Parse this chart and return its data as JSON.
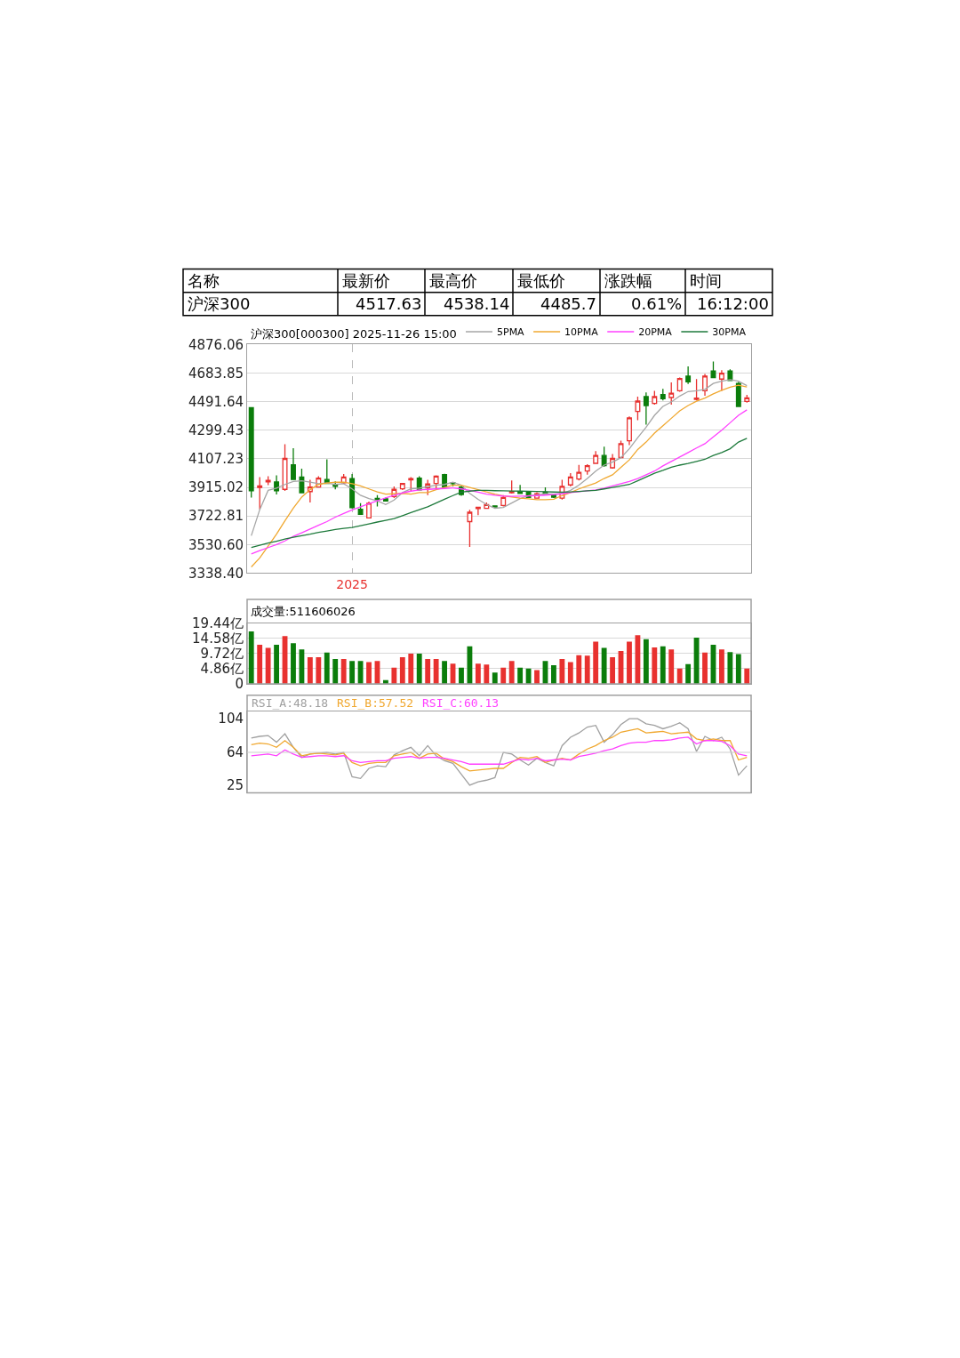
{
  "chart_data": [
    {
      "type": "other",
      "annotations": [
        "名称",
        "最新价",
        "最高价",
        "最低价",
        "涨跌幅",
        "时间",
        "沪深300",
        "4517.63",
        "4538.14",
        "4485.7",
        "0.61%",
        "16:12:00"
      ]
    },
    {
      "type": "candlestick",
      "title": "沪深300[000300] 2025-11-26 15:00",
      "categories": [
        null,
        null,
        null,
        null,
        null,
        null,
        null,
        null,
        null,
        null,
        null,
        null,
        "2025",
        null,
        null,
        null,
        null,
        null,
        null,
        null,
        null,
        null,
        null,
        null,
        null,
        null,
        null,
        null,
        null,
        null,
        null,
        null,
        null,
        null,
        null,
        null,
        null,
        null,
        null,
        null,
        null,
        null,
        null,
        null,
        null,
        null,
        null,
        null,
        null,
        null,
        null,
        null,
        null,
        null,
        null,
        null,
        null,
        null,
        null,
        null
      ],
      "ohlc": [
        [
          4452,
          4452,
          3847,
          3892
        ],
        [
          3915,
          3985,
          3768,
          3925
        ],
        [
          3952,
          3991,
          3930,
          3962
        ],
        [
          3952,
          3997,
          3867,
          3892
        ],
        [
          3902,
          4205,
          3892,
          4110
        ],
        [
          4067,
          4179,
          3966,
          3968
        ],
        [
          3985,
          4041,
          3876,
          3879
        ],
        [
          3887,
          3966,
          3813,
          3918
        ],
        [
          3918,
          3991,
          3915,
          3977
        ],
        [
          3968,
          4104,
          3940,
          3942
        ],
        [
          3932,
          3956,
          3902,
          3922
        ],
        [
          3946,
          4005,
          3940,
          3985
        ],
        [
          3975,
          4005,
          3774,
          3778
        ],
        [
          3768,
          3809,
          3732,
          3734
        ],
        [
          3710,
          3819,
          3708,
          3809
        ],
        [
          3841,
          3863,
          3787,
          3833
        ],
        [
          3839,
          3847,
          3821,
          3823
        ],
        [
          3853,
          3922,
          3843,
          3902
        ],
        [
          3906,
          3946,
          3898,
          3942
        ],
        [
          3966,
          3985,
          3892,
          3975
        ],
        [
          3977,
          3991,
          3896,
          3898
        ],
        [
          3912,
          3966,
          3863,
          3938
        ],
        [
          3942,
          3997,
          3898,
          3991
        ],
        [
          4001,
          4007,
          3916,
          3918
        ],
        [
          3946,
          3952,
          3922,
          3940
        ],
        [
          3918,
          3926,
          3859,
          3867
        ],
        [
          3685,
          3764,
          3514,
          3748
        ],
        [
          3772,
          3784,
          3728,
          3782
        ],
        [
          3774,
          3813,
          3772,
          3799
        ],
        [
          3791,
          3793,
          3779,
          3783
        ],
        [
          3793,
          3863,
          3787,
          3847
        ],
        [
          3879,
          3962,
          3873,
          3887
        ],
        [
          3887,
          3932,
          3873,
          3875
        ],
        [
          3883,
          3887,
          3843,
          3847
        ],
        [
          3843,
          3883,
          3841,
          3873
        ],
        [
          3883,
          3916,
          3863,
          3867
        ],
        [
          3863,
          3869,
          3843,
          3849
        ],
        [
          3843,
          3966,
          3833,
          3922
        ],
        [
          3932,
          4011,
          3922,
          3985
        ],
        [
          3972,
          4067,
          3962,
          4017
        ],
        [
          4025,
          4071,
          4001,
          4061
        ],
        [
          4077,
          4160,
          4075,
          4130
        ],
        [
          4130,
          4189,
          4055,
          4061
        ],
        [
          4047,
          4140,
          4041,
          4110
        ],
        [
          4116,
          4229,
          4114,
          4209
        ],
        [
          4229,
          4393,
          4199,
          4383
        ],
        [
          4427,
          4526,
          4367,
          4496
        ],
        [
          4526,
          4555,
          4338,
          4466
        ],
        [
          4480,
          4565,
          4472,
          4526
        ],
        [
          4540,
          4579,
          4500,
          4512
        ],
        [
          4520,
          4621,
          4472,
          4549
        ],
        [
          4565,
          4654,
          4559,
          4648
        ],
        [
          4664,
          4730,
          4611,
          4625
        ],
        [
          4508,
          4644,
          4500,
          4516
        ],
        [
          4565,
          4678,
          4532,
          4664
        ],
        [
          4698,
          4763,
          4652,
          4654
        ],
        [
          4644,
          4704,
          4565,
          4684
        ],
        [
          4698,
          4710,
          4631,
          4635
        ],
        [
          4615,
          4625,
          4456,
          4460
        ],
        [
          4494,
          4538,
          4486,
          4518
        ]
      ],
      "series": [
        {
          "name": "5PMA",
          "type": "line",
          "color": "#a6a6a6",
          "values": [
            3590,
            3765,
            3895,
            3910,
            3935,
            3955,
            3960,
            3950,
            3940,
            3945,
            3935,
            3940,
            3905,
            3862,
            3840,
            3825,
            3800,
            3830,
            3880,
            3905,
            3910,
            3920,
            3930,
            3935,
            3950,
            3930,
            3875,
            3835,
            3800,
            3775,
            3780,
            3810,
            3840,
            3860,
            3865,
            3872,
            3870,
            3875,
            3895,
            3930,
            3975,
            4025,
            4065,
            4085,
            4115,
            4175,
            4250,
            4320,
            4400,
            4460,
            4490,
            4530,
            4560,
            4565,
            4575,
            4615,
            4630,
            4640,
            4630,
            4600
          ]
        },
        {
          "name": "10PMA",
          "type": "line",
          "color": "#f0a830",
          "values": [
            3380,
            3440,
            3520,
            3600,
            3690,
            3775,
            3850,
            3900,
            3935,
            3945,
            3950,
            3950,
            3940,
            3925,
            3905,
            3885,
            3870,
            3872,
            3875,
            3870,
            3880,
            3880,
            3900,
            3915,
            3930,
            3930,
            3915,
            3900,
            3885,
            3870,
            3858,
            3850,
            3843,
            3838,
            3833,
            3833,
            3836,
            3860,
            3880,
            3905,
            3925,
            3945,
            3975,
            4000,
            4050,
            4100,
            4170,
            4220,
            4280,
            4330,
            4380,
            4430,
            4466,
            4495,
            4516,
            4545,
            4568,
            4590,
            4603,
            4591
          ]
        },
        {
          "name": "20PMA",
          "type": "line",
          "color": "#ff40ff",
          "values": [
            3467,
            3490,
            3510,
            3530,
            3555,
            3586,
            3610,
            3635,
            3660,
            3685,
            3715,
            3740,
            3764,
            3785,
            3805,
            3825,
            3845,
            3863,
            3878,
            3890,
            3898,
            3902,
            3905,
            3908,
            3912,
            3905,
            3895,
            3883,
            3870,
            3862,
            3857,
            3855,
            3856,
            3858,
            3860,
            3863,
            3867,
            3872,
            3880,
            3886,
            3892,
            3898,
            3910,
            3925,
            3940,
            3955,
            3975,
            4000,
            4025,
            4060,
            4090,
            4120,
            4150,
            4180,
            4209,
            4255,
            4300,
            4350,
            4400,
            4437
          ]
        },
        {
          "name": "30PMA",
          "type": "line",
          "color": "#1e7a3c",
          "values": [
            3510,
            3525,
            3540,
            3553,
            3567,
            3580,
            3590,
            3600,
            3612,
            3622,
            3632,
            3640,
            3645,
            3657,
            3670,
            3682,
            3693,
            3705,
            3725,
            3745,
            3765,
            3784,
            3810,
            3835,
            3860,
            3883,
            3890,
            3895,
            3895,
            3893,
            3892,
            3891,
            3890,
            3889,
            3888,
            3886,
            3884,
            3883,
            3885,
            3888,
            3892,
            3895,
            3905,
            3915,
            3925,
            3935,
            3960,
            3985,
            4011,
            4030,
            4051,
            4065,
            4076,
            4090,
            4104,
            4130,
            4150,
            4175,
            4220,
            4245
          ]
        }
      ],
      "ylim": [
        3338.4,
        4876.06
      ],
      "yticks": [
        {
          "value": 3338.4,
          "label": "3338.40"
        },
        {
          "value": 3530.6,
          "label": "3530.60"
        },
        3722.81,
        3915.02,
        4107.23,
        4299.43,
        4491.64,
        4683.85,
        4876.06
      ],
      "grid": true,
      "legend": "top right"
    },
    {
      "type": "bar",
      "title": "成交量:511606026",
      "categories": [
        null,
        null,
        null,
        null,
        null,
        null,
        null,
        null,
        null,
        null,
        null,
        null,
        null,
        null,
        null,
        null,
        null,
        null,
        null,
        null,
        null,
        null,
        null,
        null,
        null,
        null,
        null,
        null,
        null,
        null,
        null,
        null,
        null,
        null,
        null,
        null,
        null,
        null,
        null,
        null,
        null,
        null,
        null,
        null,
        null,
        null,
        null,
        null,
        null,
        null,
        null,
        null,
        null,
        null,
        null,
        null,
        null,
        null,
        null,
        null
      ],
      "values": [
        16.8,
        12.5,
        11.5,
        12.5,
        15.3,
        13,
        11,
        8.5,
        8.5,
        10,
        8,
        8,
        7.3,
        7.3,
        7,
        7.3,
        1.2,
        5.2,
        8.5,
        9.7,
        9.7,
        8,
        8,
        7.3,
        6.5,
        5.2,
        12,
        6.5,
        6.2,
        3.6,
        5.2,
        7.3,
        5.2,
        4.9,
        4.4,
        7.3,
        6,
        8,
        7,
        9.2,
        9,
        13.5,
        11.5,
        8.5,
        10.5,
        13.5,
        15.6,
        14.3,
        11.7,
        12,
        11,
        4.9,
        6.3,
        14.8,
        10,
        12.5,
        11,
        10.2,
        9.5,
        4.9
      ],
      "colors": [
        "#0b7d0b",
        "#e8312f",
        "#e8312f",
        "#0b7d0b",
        "#e8312f",
        "#0b7d0b",
        "#0b7d0b",
        "#e8312f",
        "#e8312f",
        "#0b7d0b",
        "#0b7d0b",
        "#e8312f",
        "#0b7d0b",
        "#0b7d0b",
        "#e8312f",
        "#e8312f",
        "#0b7d0b",
        "#e8312f",
        "#e8312f",
        "#e8312f",
        "#0b7d0b",
        "#e8312f",
        "#e8312f",
        "#0b7d0b",
        "#e8312f",
        "#0b7d0b",
        "#0b7d0b",
        "#e8312f",
        "#e8312f",
        "#0b7d0b",
        "#e8312f",
        "#e8312f",
        "#0b7d0b",
        "#0b7d0b",
        "#e8312f",
        "#0b7d0b",
        "#0b7d0b",
        "#e8312f",
        "#e8312f",
        "#e8312f",
        "#e8312f",
        "#e8312f",
        "#0b7d0b",
        "#e8312f",
        "#e8312f",
        "#e8312f",
        "#e8312f",
        "#0b7d0b",
        "#e8312f",
        "#0b7d0b",
        "#e8312f",
        "#e8312f",
        "#0b7d0b",
        "#0b7d0b",
        "#e8312f",
        "#0b7d0b",
        "#e8312f",
        "#0b7d0b",
        "#0b7d0b",
        "#e8312f"
      ],
      "ylim": [
        0,
        19.44
      ],
      "yticks": [
        0,
        {
          "value": 4.86,
          "label": "4.86亿"
        },
        {
          "value": 9.72,
          "label": "9.72亿"
        },
        {
          "value": 14.58,
          "label": "14.58亿"
        },
        {
          "value": 19.44,
          "label": "19.44亿"
        }
      ],
      "grid": true,
      "tick_labels": "y"
    },
    {
      "type": "line",
      "categories": [
        null,
        null,
        null,
        null,
        null,
        null,
        null,
        null,
        null,
        null,
        null,
        null,
        null,
        null,
        null,
        null,
        null,
        null,
        null,
        null,
        null,
        null,
        null,
        null,
        null,
        null,
        null,
        null,
        null,
        null,
        null,
        null,
        null,
        null,
        null,
        null,
        null,
        null,
        null,
        null,
        null,
        null,
        null,
        null,
        null,
        null,
        null,
        null,
        null,
        null,
        null,
        null,
        null,
        null,
        null,
        null,
        null,
        null,
        null,
        null
      ],
      "series": [
        {
          "name": "RSI_A:48.18",
          "color": "#a0a0a0",
          "values": [
            81,
            83,
            84,
            76,
            86,
            70,
            58,
            62,
            63,
            64,
            62,
            64,
            35,
            33,
            45,
            48,
            47,
            61,
            66,
            70,
            60,
            72,
            60,
            54,
            51,
            38,
            25,
            29,
            31,
            34,
            64,
            62,
            55,
            49,
            57,
            52,
            48,
            72,
            82,
            87,
            94,
            96,
            76,
            85,
            97,
            104,
            104,
            98,
            96,
            92,
            95,
            99,
            92,
            65,
            83,
            78,
            82,
            68,
            37,
            48
          ]
        },
        {
          "name": "RSI_B:57.52",
          "color": "#f0a830",
          "values": [
            73,
            75,
            74,
            70,
            78,
            70,
            60,
            62,
            63,
            62,
            61,
            63,
            52,
            48,
            51,
            52,
            52,
            60,
            62,
            64,
            57,
            62,
            63,
            56,
            53,
            47,
            42,
            43,
            44,
            45,
            45,
            52,
            58,
            57,
            59,
            52,
            55,
            57,
            55,
            62,
            68,
            72,
            78,
            82,
            88,
            90,
            92,
            87,
            88,
            89,
            86,
            87,
            88,
            80,
            78,
            80,
            78,
            78,
            55,
            58
          ]
        },
        {
          "name": "RSI_C:60.13",
          "color": "#ff40ff",
          "values": [
            60,
            61,
            62,
            60,
            67,
            62,
            58,
            59,
            60,
            60,
            59,
            60,
            54,
            52,
            53,
            54,
            54,
            57,
            58,
            59,
            57,
            58,
            58,
            57,
            55,
            53,
            50,
            50,
            50,
            50,
            50,
            53,
            56,
            55,
            57,
            54,
            55,
            56,
            55,
            59,
            61,
            63,
            66,
            68,
            72,
            75,
            76,
            76,
            78,
            78,
            79,
            81,
            82,
            74,
            78,
            78,
            77,
            72,
            62,
            60
          ]
        }
      ],
      "ylim": [
        16,
        113
      ],
      "yticks": [
        25,
        64,
        104
      ],
      "ref_lines": [
        {
          "axis": "y",
          "value": 64,
          "color": "#cccccc"
        }
      ],
      "tick_labels": "y"
    }
  ]
}
